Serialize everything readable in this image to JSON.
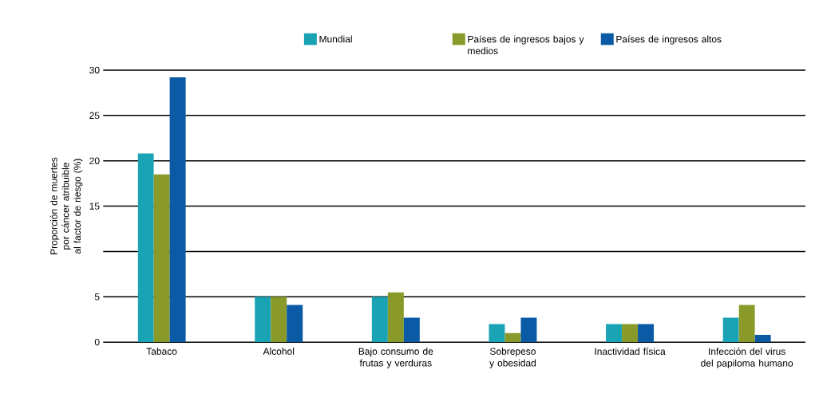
{
  "chart_data": {
    "type": "bar",
    "ylabel": "Proporción de muertes por cáncer atribuible al factor de riesgo (%)",
    "categories": [
      "Tabaco",
      "Alcohol",
      "Bajo consumo de frutas y verduras",
      "Sobrepeso y obesidad",
      "Inactividad física",
      "Infección del virus del papiloma humano"
    ],
    "series": [
      {
        "name": "Mundial",
        "color": "#1aa3b5",
        "values": [
          20.8,
          5.0,
          5.0,
          2.0,
          2.0,
          2.7
        ]
      },
      {
        "name": "Países de ingresos bajos y medios",
        "color": "#8a9a2a",
        "values": [
          18.5,
          5.0,
          5.5,
          1.0,
          2.0,
          4.1
        ]
      },
      {
        "name": "Países de ingresos altos",
        "color": "#0a5aa5",
        "values": [
          29.2,
          4.1,
          2.7,
          2.7,
          2.0,
          0.8
        ]
      }
    ],
    "ylim": [
      0,
      30
    ],
    "yticks": [
      0,
      5,
      {
        "value": 10,
        "label": null
      },
      15,
      20,
      25,
      30
    ],
    "grid": "y",
    "legend": "top"
  }
}
